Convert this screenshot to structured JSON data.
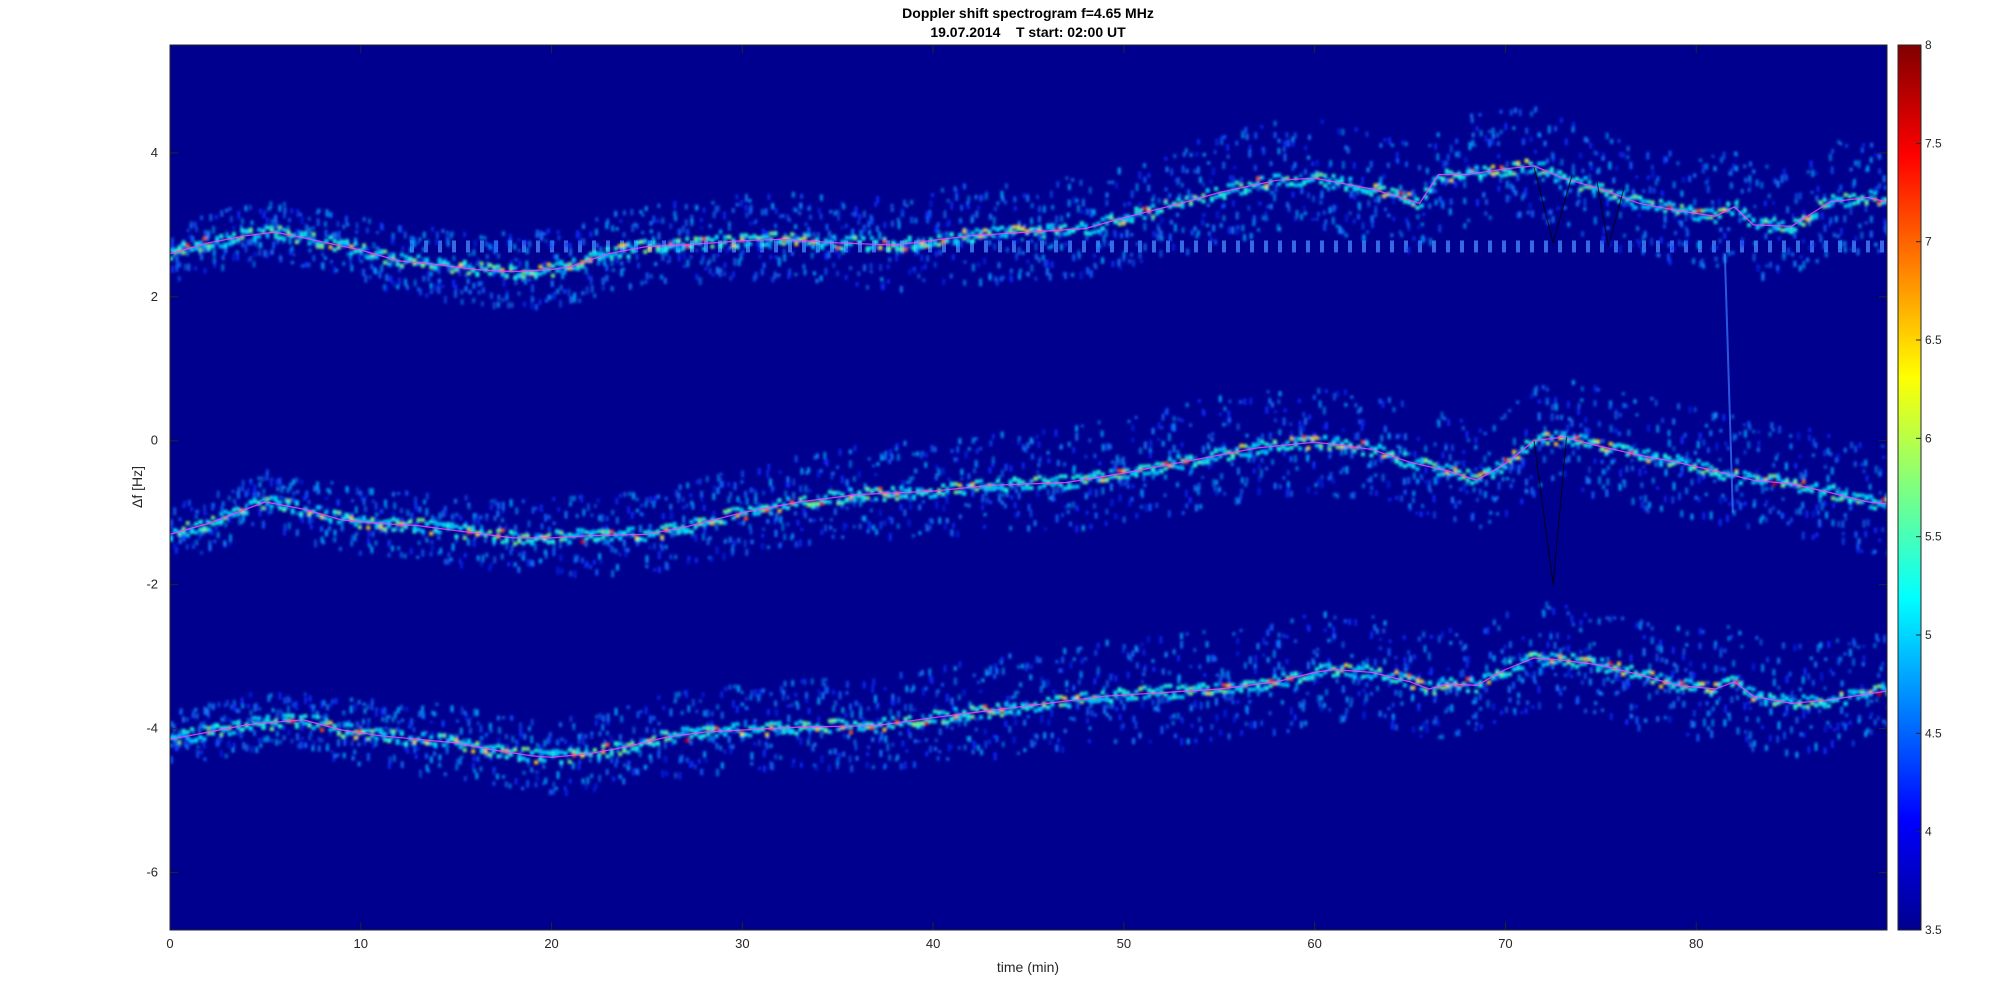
{
  "chart_data": {
    "type": "heatmap",
    "title": "Doppler shift spectrogram f=4.65 MHz",
    "subtitle": "19.07.2014    T start: 02:00 UT",
    "xlabel": "time (min)",
    "ylabel": "Δf [Hz]",
    "xlim": [
      0,
      90
    ],
    "ylim": [
      -6.8,
      5.5
    ],
    "xticks": [
      "0",
      "10",
      "20",
      "30",
      "40",
      "50",
      "60",
      "70",
      "80"
    ],
    "yticks": [
      "4",
      "2",
      "0",
      "-2",
      "-4",
      "-6"
    ],
    "colorbar": {
      "range": [
        3.5,
        8
      ],
      "ticks": [
        "8",
        "7.5",
        "7",
        "6.5",
        "6",
        "5.5",
        "5",
        "4.5",
        "4",
        "3.5"
      ],
      "colormap": "jet"
    },
    "background_color": "#00008f",
    "trace_color": "#ff40ff",
    "series": [
      {
        "x": [
          0,
          2,
          4,
          5.5,
          7,
          10,
          12,
          14,
          16,
          18,
          20,
          21,
          23,
          25,
          27,
          30,
          32,
          35,
          38,
          42,
          45,
          48,
          50,
          53,
          55,
          58,
          60,
          63,
          65.5,
          66.5,
          68,
          70,
          71.5,
          73,
          75,
          77,
          79,
          81,
          82,
          83,
          85,
          87,
          89,
          90
        ],
        "y": [
          2.6,
          2.75,
          2.85,
          2.9,
          2.82,
          2.65,
          2.5,
          2.45,
          2.38,
          2.35,
          2.38,
          2.42,
          2.6,
          2.7,
          2.72,
          2.78,
          2.8,
          2.75,
          2.72,
          2.85,
          2.9,
          2.95,
          3.1,
          3.3,
          3.45,
          3.62,
          3.65,
          3.5,
          3.3,
          3.7,
          3.7,
          3.78,
          3.82,
          3.65,
          3.5,
          3.3,
          3.2,
          3.12,
          3.25,
          3.0,
          2.98,
          3.32,
          3.38,
          3.32
        ]
      },
      {
        "x": [
          0,
          2,
          4,
          5,
          7,
          9,
          11,
          13,
          15,
          18,
          20,
          22,
          25,
          27,
          30,
          33,
          36,
          40,
          43,
          47,
          50,
          53,
          57,
          60,
          61,
          63,
          65,
          67,
          68.5,
          70,
          71.5,
          73,
          75,
          77,
          79,
          81,
          83,
          85,
          87,
          89,
          90
        ],
        "y": [
          -1.3,
          -1.15,
          -0.95,
          -0.85,
          -0.95,
          -1.1,
          -1.15,
          -1.18,
          -1.25,
          -1.35,
          -1.35,
          -1.32,
          -1.3,
          -1.2,
          -1.0,
          -0.85,
          -0.75,
          -0.7,
          -0.62,
          -0.58,
          -0.45,
          -0.3,
          -0.1,
          -0.02,
          -0.05,
          -0.12,
          -0.3,
          -0.42,
          -0.55,
          -0.32,
          0.0,
          0.05,
          -0.08,
          -0.2,
          -0.3,
          -0.42,
          -0.55,
          -0.6,
          -0.72,
          -0.85,
          -0.88
        ]
      },
      {
        "x": [
          0,
          2,
          4,
          6,
          7,
          9,
          11,
          13,
          15,
          17,
          19,
          20,
          22,
          24,
          26,
          28,
          30,
          33,
          35,
          37,
          40,
          43,
          46,
          49,
          52,
          55,
          58,
          60,
          61,
          63,
          65,
          66,
          67,
          68.5,
          70,
          71.5,
          73,
          75,
          77,
          79,
          81,
          82,
          83,
          85,
          87,
          89,
          90
        ],
        "y": [
          -4.15,
          -4.05,
          -3.95,
          -3.9,
          -3.88,
          -4.02,
          -4.1,
          -4.15,
          -4.2,
          -4.3,
          -4.38,
          -4.4,
          -4.35,
          -4.25,
          -4.12,
          -4.05,
          -4.02,
          -3.98,
          -3.97,
          -3.96,
          -3.85,
          -3.75,
          -3.65,
          -3.55,
          -3.5,
          -3.45,
          -3.35,
          -3.22,
          -3.18,
          -3.22,
          -3.35,
          -3.45,
          -3.38,
          -3.4,
          -3.18,
          -3.02,
          -3.05,
          -3.12,
          -3.25,
          -3.4,
          -3.45,
          -3.35,
          -3.55,
          -3.65,
          -3.6,
          -3.52,
          -3.48
        ]
      }
    ]
  }
}
